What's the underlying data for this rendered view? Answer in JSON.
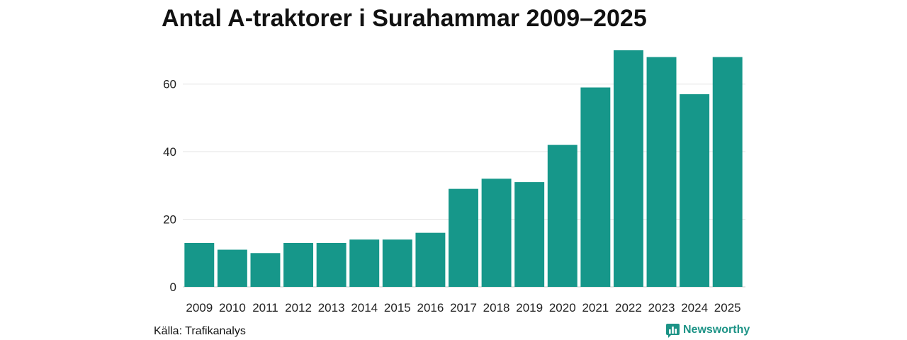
{
  "colors": {
    "bar": "#16978a",
    "grid": "#e3e3e3",
    "axis": "#cdcdcd",
    "text": "#111111",
    "brand": "#1c9386"
  },
  "logo": {
    "text": "Newsworthy",
    "icon": "bar-chart-icon"
  },
  "chart_data": {
    "type": "bar",
    "title": "Antal A-traktorer i Surahammar 2009–2025",
    "source": "Källa: Trafikanalys",
    "categories": [
      "2009",
      "2010",
      "2011",
      "2012",
      "2013",
      "2014",
      "2015",
      "2016",
      "2017",
      "2018",
      "2019",
      "2020",
      "2021",
      "2022",
      "2023",
      "2024",
      "2025"
    ],
    "values": [
      13,
      11,
      10,
      13,
      13,
      14,
      14,
      16,
      29,
      32,
      31,
      42,
      59,
      70,
      68,
      57,
      68
    ],
    "ylim": [
      0,
      70
    ],
    "yticks": [
      0,
      20,
      40,
      60
    ],
    "grid": true
  }
}
